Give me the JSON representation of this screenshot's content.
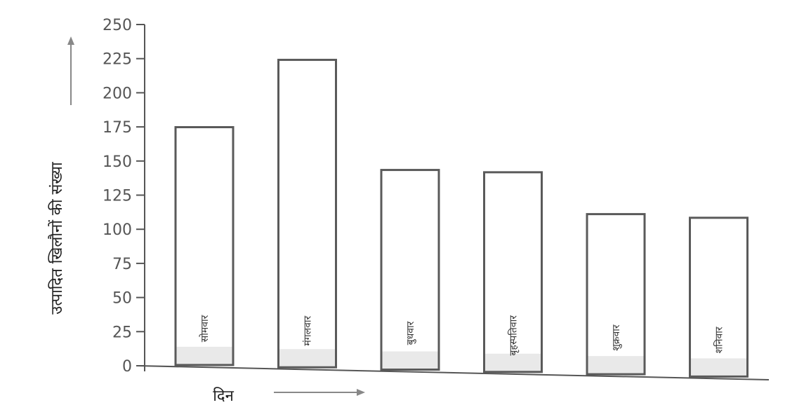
{
  "chart_data": {
    "type": "bar",
    "categories": [
      "सोमवार",
      "मंगलवार",
      "बुधवार",
      "बृहस्पतिवार",
      "शुक्रवार",
      "शनिवार"
    ],
    "values": [
      175,
      225,
      145,
      144,
      114,
      112
    ],
    "yticks": [
      0,
      25,
      50,
      75,
      100,
      125,
      150,
      175,
      200,
      225,
      250
    ],
    "ylim": [
      0,
      250
    ],
    "xlabel": "दिन",
    "ylabel": "उत्पादित खिलौनों की संख्या",
    "grid": false,
    "colors": {
      "bar_stroke": "#5a5a5a",
      "bar_fill": "#ffffff",
      "axis": "#555555",
      "bar_base": "#e9e9e9"
    }
  }
}
